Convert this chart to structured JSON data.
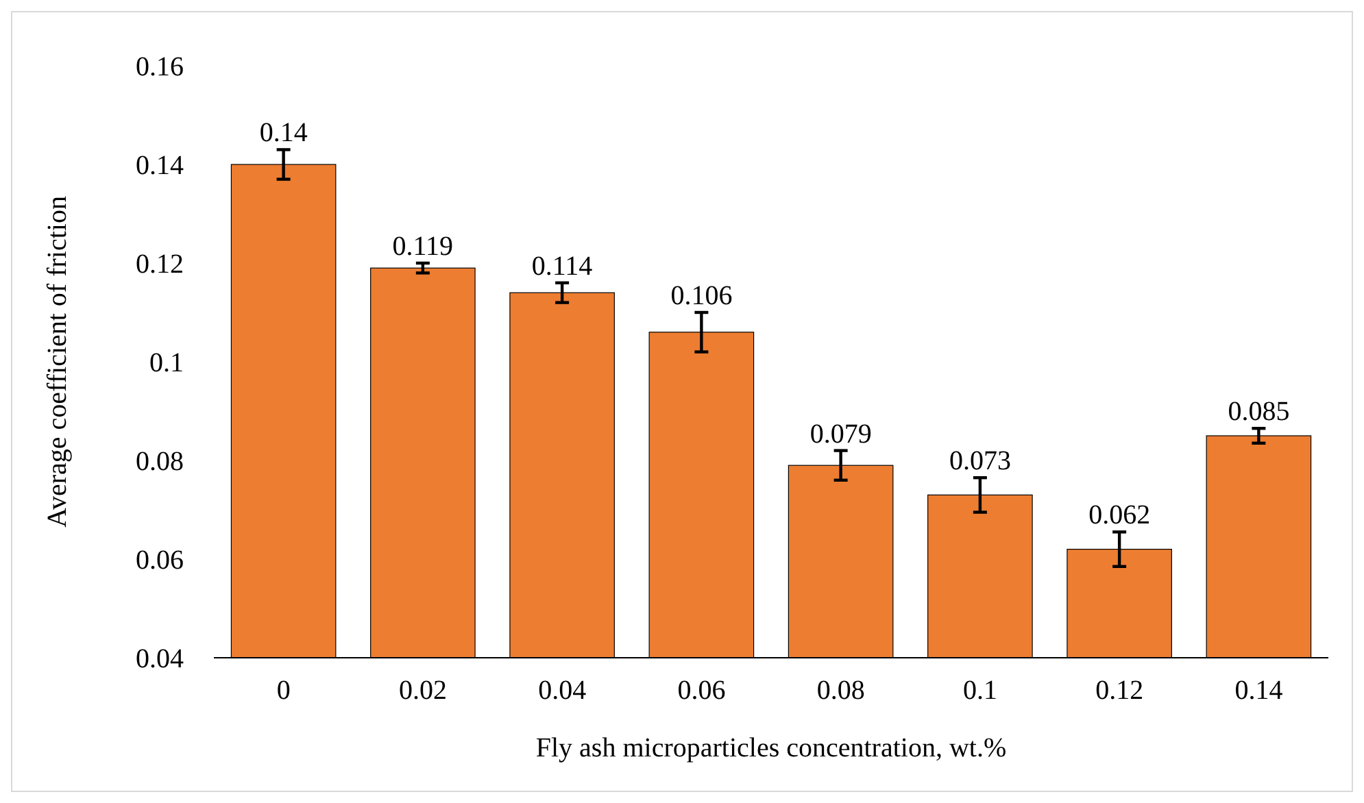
{
  "chart_data": {
    "type": "bar",
    "xlabel": "Fly ash microparticles concentration, wt.%",
    "ylabel": "Average coefficient of friction",
    "categories": [
      "0",
      "0.02",
      "0.04",
      "0.06",
      "0.08",
      "0.1",
      "0.12",
      "0.14"
    ],
    "values": [
      0.14,
      0.119,
      0.114,
      0.106,
      0.079,
      0.073,
      0.062,
      0.085
    ],
    "errors": [
      0.003,
      0.001,
      0.002,
      0.004,
      0.003,
      0.0035,
      0.0035,
      0.0015
    ],
    "color": "#ed7d31",
    "data_labels": true,
    "grid": false,
    "ylim": [
      0.04,
      0.16
    ],
    "yticks": [
      0.04,
      0.06,
      0.08,
      0.1,
      0.12,
      0.14,
      0.16
    ]
  }
}
